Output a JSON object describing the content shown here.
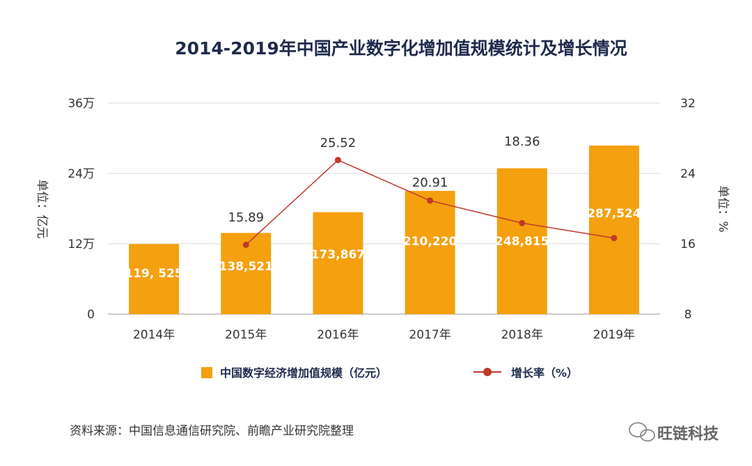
{
  "chart_data": {
    "type": "bar",
    "title": "2014-2019年中国产业数字化增加值规模统计及增长情况",
    "categories": [
      "2014年",
      "2015年",
      "2016年",
      "2017年",
      "2018年",
      "2019年"
    ],
    "series": [
      {
        "name": "中国数字经济增加值规模（亿元）",
        "type": "bar",
        "axis": "left",
        "values": [
          119525,
          138521,
          173867,
          210220,
          248815,
          287524
        ],
        "labels": [
          "119, 525",
          "138,521",
          "173,867",
          "210,220",
          "248,815",
          "287,524"
        ],
        "color": "#f5a00f"
      },
      {
        "name": "增长率（%）",
        "type": "line",
        "axis": "right",
        "values": [
          null,
          15.89,
          25.52,
          20.91,
          18.36,
          16.65
        ],
        "labels": [
          "",
          "15.89",
          "25.52",
          "20.91",
          "18.36",
          ""
        ],
        "color": "#c0392b"
      }
    ],
    "y_left": {
      "label": "单位：亿元",
      "ylim": [
        0,
        360000
      ],
      "ticks": [
        0,
        120000,
        240000,
        360000
      ],
      "tick_labels": [
        "0",
        "12万",
        "24万",
        "36万"
      ]
    },
    "y_right": {
      "label": "单位：%",
      "ylim": [
        8,
        32
      ],
      "ticks": [
        8,
        16,
        24,
        32
      ],
      "tick_labels": [
        "8",
        "16",
        "24",
        "32"
      ]
    },
    "grid": true,
    "legend_position": "bottom"
  },
  "source_text": "资料来源：中国信息通信研究院、前瞻产业研究院整理",
  "watermark": "旺链科技"
}
